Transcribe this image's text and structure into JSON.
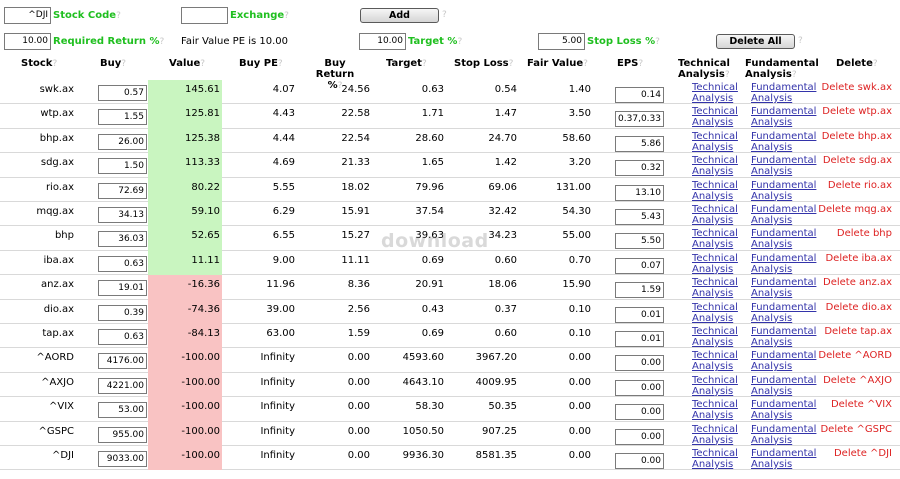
{
  "form": {
    "stock_code_value": "^DJI",
    "stock_code_label": "Stock Code",
    "exchange_value": "",
    "exchange_label": "Exchange",
    "add_label": "Add",
    "required_return_value": "10.00",
    "required_return_label": "Required Return %",
    "fair_value_pe_text": "Fair Value PE is 10.00",
    "target_value": "10.00",
    "target_label": "Target %",
    "stop_loss_value": "5.00",
    "stop_loss_label": "Stop Loss %",
    "delete_all_label": "Delete All",
    "help_mark": "?"
  },
  "columns": {
    "stock": "Stock",
    "buy": "Buy",
    "value": "Value",
    "buy_pe": "Buy PE",
    "buy_return_1": "Buy Return",
    "buy_return_2": "%",
    "target": "Target",
    "stop_loss": "Stop Loss",
    "fair_value": "Fair Value",
    "eps": "EPS",
    "ta_1": "Technical",
    "ta_2": "Analysis",
    "fa_1": "Fundamental",
    "fa_2": "Analysis",
    "delete": "Delete"
  },
  "links": {
    "technical_1": "Technical",
    "technical_2": "Analysis",
    "fundamental_1": "Fundamental",
    "fundamental_2": "Analysis"
  },
  "watermark": "download",
  "colors": {
    "positive": "#c9f5c0",
    "negative": "#f9c3c3",
    "label_green": "#1fbf1f",
    "delete_red": "#dd2222",
    "link_blue": "#3333aa"
  },
  "rows": [
    {
      "stock": "swk.ax",
      "buy": "0.57",
      "value": "145.61",
      "buy_pe": "4.07",
      "buy_return": "24.56",
      "target": "0.63",
      "stop_loss": "0.54",
      "fair_value": "1.40",
      "eps": "0.14",
      "delete": "Delete swk.ax",
      "status": "positive"
    },
    {
      "stock": "wtp.ax",
      "buy": "1.55",
      "value": "125.81",
      "buy_pe": "4.43",
      "buy_return": "22.58",
      "target": "1.71",
      "stop_loss": "1.47",
      "fair_value": "3.50",
      "eps": "0.37,0.33",
      "delete": "Delete wtp.ax",
      "status": "positive"
    },
    {
      "stock": "bhp.ax",
      "buy": "26.00",
      "value": "125.38",
      "buy_pe": "4.44",
      "buy_return": "22.54",
      "target": "28.60",
      "stop_loss": "24.70",
      "fair_value": "58.60",
      "eps": "5.86",
      "delete": "Delete bhp.ax",
      "status": "positive"
    },
    {
      "stock": "sdg.ax",
      "buy": "1.50",
      "value": "113.33",
      "buy_pe": "4.69",
      "buy_return": "21.33",
      "target": "1.65",
      "stop_loss": "1.42",
      "fair_value": "3.20",
      "eps": "0.32",
      "delete": "Delete sdg.ax",
      "status": "positive"
    },
    {
      "stock": "rio.ax",
      "buy": "72.69",
      "value": "80.22",
      "buy_pe": "5.55",
      "buy_return": "18.02",
      "target": "79.96",
      "stop_loss": "69.06",
      "fair_value": "131.00",
      "eps": "13.10",
      "delete": "Delete rio.ax",
      "status": "positive"
    },
    {
      "stock": "mqg.ax",
      "buy": "34.13",
      "value": "59.10",
      "buy_pe": "6.29",
      "buy_return": "15.91",
      "target": "37.54",
      "stop_loss": "32.42",
      "fair_value": "54.30",
      "eps": "5.43",
      "delete": "Delete mqg.ax",
      "status": "positive"
    },
    {
      "stock": "bhp",
      "buy": "36.03",
      "value": "52.65",
      "buy_pe": "6.55",
      "buy_return": "15.27",
      "target": "39.63",
      "stop_loss": "34.23",
      "fair_value": "55.00",
      "eps": "5.50",
      "delete": "Delete bhp",
      "status": "positive"
    },
    {
      "stock": "iba.ax",
      "buy": "0.63",
      "value": "11.11",
      "buy_pe": "9.00",
      "buy_return": "11.11",
      "target": "0.69",
      "stop_loss": "0.60",
      "fair_value": "0.70",
      "eps": "0.07",
      "delete": "Delete iba.ax",
      "status": "positive"
    },
    {
      "stock": "anz.ax",
      "buy": "19.01",
      "value": "-16.36",
      "buy_pe": "11.96",
      "buy_return": "8.36",
      "target": "20.91",
      "stop_loss": "18.06",
      "fair_value": "15.90",
      "eps": "1.59",
      "delete": "Delete anz.ax",
      "status": "negative"
    },
    {
      "stock": "dio.ax",
      "buy": "0.39",
      "value": "-74.36",
      "buy_pe": "39.00",
      "buy_return": "2.56",
      "target": "0.43",
      "stop_loss": "0.37",
      "fair_value": "0.10",
      "eps": "0.01",
      "delete": "Delete dio.ax",
      "status": "negative"
    },
    {
      "stock": "tap.ax",
      "buy": "0.63",
      "value": "-84.13",
      "buy_pe": "63.00",
      "buy_return": "1.59",
      "target": "0.69",
      "stop_loss": "0.60",
      "fair_value": "0.10",
      "eps": "0.01",
      "delete": "Delete tap.ax",
      "status": "negative"
    },
    {
      "stock": "^AORD",
      "buy": "4176.00",
      "value": "-100.00",
      "buy_pe": "Infinity",
      "buy_return": "0.00",
      "target": "4593.60",
      "stop_loss": "3967.20",
      "fair_value": "0.00",
      "eps": "0.00",
      "delete": "Delete ^AORD",
      "status": "negative"
    },
    {
      "stock": "^AXJO",
      "buy": "4221.00",
      "value": "-100.00",
      "buy_pe": "Infinity",
      "buy_return": "0.00",
      "target": "4643.10",
      "stop_loss": "4009.95",
      "fair_value": "0.00",
      "eps": "0.00",
      "delete": "Delete ^AXJO",
      "status": "negative"
    },
    {
      "stock": "^VIX",
      "buy": "53.00",
      "value": "-100.00",
      "buy_pe": "Infinity",
      "buy_return": "0.00",
      "target": "58.30",
      "stop_loss": "50.35",
      "fair_value": "0.00",
      "eps": "0.00",
      "delete": "Delete ^VIX",
      "status": "negative"
    },
    {
      "stock": "^GSPC",
      "buy": "955.00",
      "value": "-100.00",
      "buy_pe": "Infinity",
      "buy_return": "0.00",
      "target": "1050.50",
      "stop_loss": "907.25",
      "fair_value": "0.00",
      "eps": "0.00",
      "delete": "Delete ^GSPC",
      "status": "negative"
    },
    {
      "stock": "^DJI",
      "buy": "9033.00",
      "value": "-100.00",
      "buy_pe": "Infinity",
      "buy_return": "0.00",
      "target": "9936.30",
      "stop_loss": "8581.35",
      "fair_value": "0.00",
      "eps": "0.00",
      "delete": "Delete ^DJI",
      "status": "negative"
    }
  ]
}
